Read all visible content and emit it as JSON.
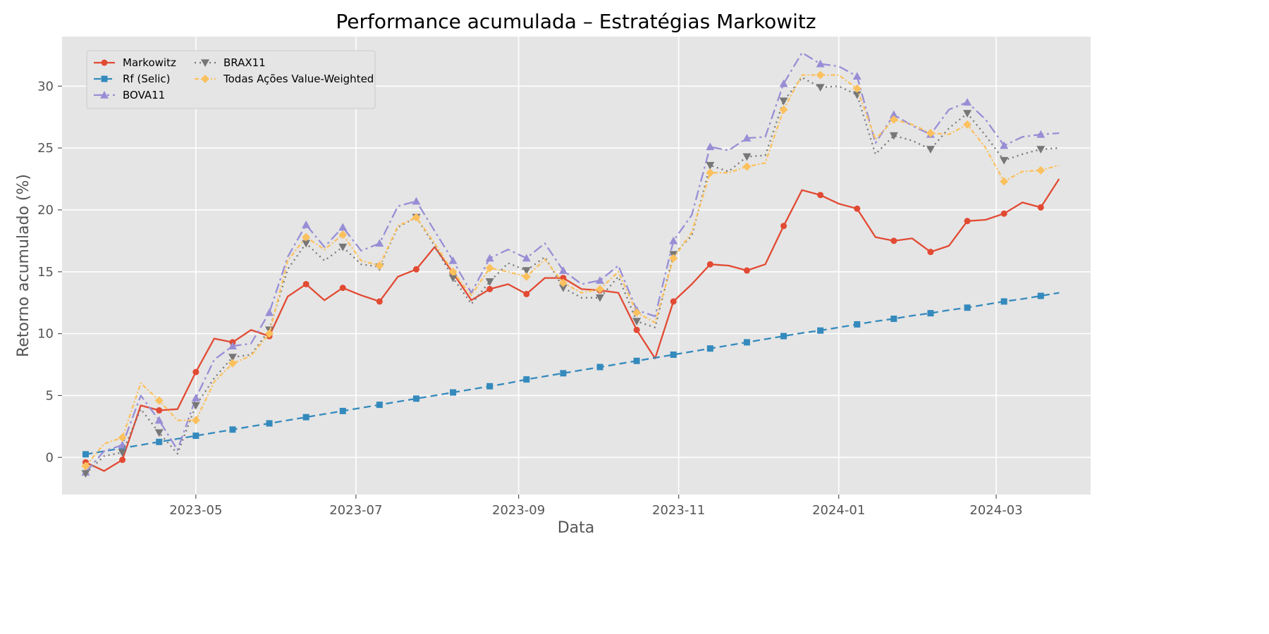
{
  "chart_data": {
    "type": "line",
    "title": "Performance acumulada – Estratégias Markowitz",
    "xlabel": "Data",
    "ylabel": "Retorno acumulado (%)",
    "xlim": [
      "2023-03-11",
      "2024-04-06"
    ],
    "ylim": [
      -3,
      34
    ],
    "yticks": [
      0,
      5,
      10,
      15,
      20,
      25,
      30
    ],
    "xticks": [
      {
        "date": "2023-05-01",
        "label": "2023-05"
      },
      {
        "date": "2023-07-01",
        "label": "2023-07"
      },
      {
        "date": "2023-09-01",
        "label": "2023-09"
      },
      {
        "date": "2023-11-01",
        "label": "2023-11"
      },
      {
        "date": "2024-01-01",
        "label": "2024-01"
      },
      {
        "date": "2024-03-01",
        "label": "2024-03"
      }
    ],
    "grid": true,
    "legend_position": "top-left",
    "x": [
      "2023-03-20",
      "2023-03-27",
      "2023-04-03",
      "2023-04-10",
      "2023-04-17",
      "2023-04-24",
      "2023-05-01",
      "2023-05-08",
      "2023-05-15",
      "2023-05-22",
      "2023-05-29",
      "2023-06-05",
      "2023-06-12",
      "2023-06-19",
      "2023-06-26",
      "2023-07-03",
      "2023-07-10",
      "2023-07-17",
      "2023-07-24",
      "2023-07-31",
      "2023-08-07",
      "2023-08-14",
      "2023-08-21",
      "2023-08-28",
      "2023-09-04",
      "2023-09-11",
      "2023-09-18",
      "2023-09-25",
      "2023-10-02",
      "2023-10-09",
      "2023-10-16",
      "2023-10-23",
      "2023-10-30",
      "2023-11-06",
      "2023-11-13",
      "2023-11-20",
      "2023-11-27",
      "2023-12-04",
      "2023-12-11",
      "2023-12-18",
      "2023-12-25",
      "2024-01-01",
      "2024-01-08",
      "2024-01-15",
      "2024-01-22",
      "2024-01-29",
      "2024-02-05",
      "2024-02-12",
      "2024-02-19",
      "2024-02-26",
      "2024-03-04",
      "2024-03-11",
      "2024-03-18",
      "2024-03-25"
    ],
    "series": [
      {
        "name": "Markowitz",
        "color": "#E24A33",
        "dash": "",
        "marker": "circle",
        "values": [
          -0.4,
          -1.1,
          -0.2,
          4.2,
          3.8,
          3.9,
          6.9,
          9.6,
          9.3,
          10.3,
          9.8,
          13.0,
          14.0,
          12.7,
          13.7,
          13.1,
          12.6,
          14.6,
          15.2,
          17.0,
          14.9,
          12.7,
          13.6,
          14.0,
          13.2,
          14.5,
          14.5,
          13.6,
          13.5,
          13.3,
          10.3,
          8.0,
          12.6,
          14.0,
          15.6,
          15.5,
          15.1,
          15.6,
          18.7,
          21.6,
          21.2,
          20.5,
          20.1,
          17.8,
          17.5,
          17.7,
          16.6,
          17.1,
          19.1,
          19.2,
          19.7,
          20.6,
          20.2,
          22.5
        ]
      },
      {
        "name": "Rf (Selic)",
        "color": "#348ABD",
        "dash": "10,6",
        "marker": "square",
        "values": [
          0.25,
          0.5,
          0.75,
          1.0,
          1.25,
          1.5,
          1.75,
          2.0,
          2.25,
          2.5,
          2.75,
          3.0,
          3.25,
          3.5,
          3.75,
          4.0,
          4.25,
          4.5,
          4.75,
          5.0,
          5.25,
          5.5,
          5.75,
          6.0,
          6.3,
          6.55,
          6.8,
          7.05,
          7.3,
          7.55,
          7.8,
          8.05,
          8.3,
          8.55,
          8.8,
          9.05,
          9.3,
          9.55,
          9.8,
          10.05,
          10.25,
          10.5,
          10.75,
          11.0,
          11.2,
          11.45,
          11.65,
          11.9,
          12.1,
          12.35,
          12.6,
          12.8,
          13.05,
          13.3
        ]
      },
      {
        "name": "BOVA11",
        "color": "#988ED5",
        "dash": "14,5,3,5",
        "marker": "triangle-up",
        "values": [
          -1.2,
          0.5,
          1.0,
          5.0,
          3.0,
          0.6,
          4.8,
          7.9,
          9.0,
          9.2,
          11.7,
          16.2,
          18.8,
          17.0,
          18.6,
          16.7,
          17.3,
          20.3,
          20.7,
          18.3,
          15.9,
          13.3,
          16.1,
          16.8,
          16.1,
          17.3,
          15.1,
          14.0,
          14.3,
          15.5,
          11.9,
          11.4,
          17.5,
          19.6,
          25.1,
          24.8,
          25.8,
          25.9,
          30.2,
          32.7,
          31.8,
          31.6,
          30.8,
          25.4,
          27.7,
          26.8,
          26.1,
          28.1,
          28.7,
          27.3,
          25.2,
          25.9,
          26.1,
          26.2
        ]
      },
      {
        "name": "BRAX11",
        "color": "#777777",
        "dash": "2,5",
        "marker": "triangle-down",
        "values": [
          -1.3,
          0.1,
          0.4,
          3.9,
          2.0,
          0.3,
          4.2,
          6.4,
          8.1,
          8.3,
          10.3,
          15.2,
          17.3,
          15.9,
          17.0,
          15.6,
          15.4,
          18.6,
          19.4,
          17.1,
          14.5,
          12.4,
          14.2,
          15.7,
          15.1,
          16.2,
          13.7,
          12.9,
          12.9,
          14.6,
          11.0,
          10.5,
          16.4,
          17.9,
          23.6,
          23.1,
          24.3,
          24.4,
          28.8,
          30.7,
          29.9,
          30.0,
          29.3,
          24.5,
          26.0,
          25.6,
          24.9,
          26.6,
          27.8,
          26.0,
          24.0,
          24.5,
          24.9,
          25.0
        ]
      },
      {
        "name": "Todas Ações Value-Weighted",
        "color": "#FBC15E",
        "dash": "6,3,2,3",
        "marker": "diamond",
        "values": [
          -0.7,
          1.1,
          1.6,
          6.0,
          4.6,
          3.0,
          3.0,
          6.1,
          7.6,
          8.2,
          10.0,
          15.9,
          17.8,
          16.8,
          18.0,
          15.9,
          15.5,
          18.7,
          19.4,
          17.3,
          15.0,
          13.1,
          15.3,
          15.0,
          14.6,
          16.0,
          14.1,
          13.3,
          13.6,
          15.0,
          11.7,
          10.9,
          16.1,
          18.2,
          23.0,
          23.0,
          23.5,
          23.8,
          28.1,
          30.9,
          30.9,
          30.9,
          29.8,
          25.7,
          27.3,
          26.9,
          26.2,
          26.1,
          26.9,
          25.0,
          22.3,
          23.1,
          23.2,
          23.6
        ]
      }
    ]
  }
}
